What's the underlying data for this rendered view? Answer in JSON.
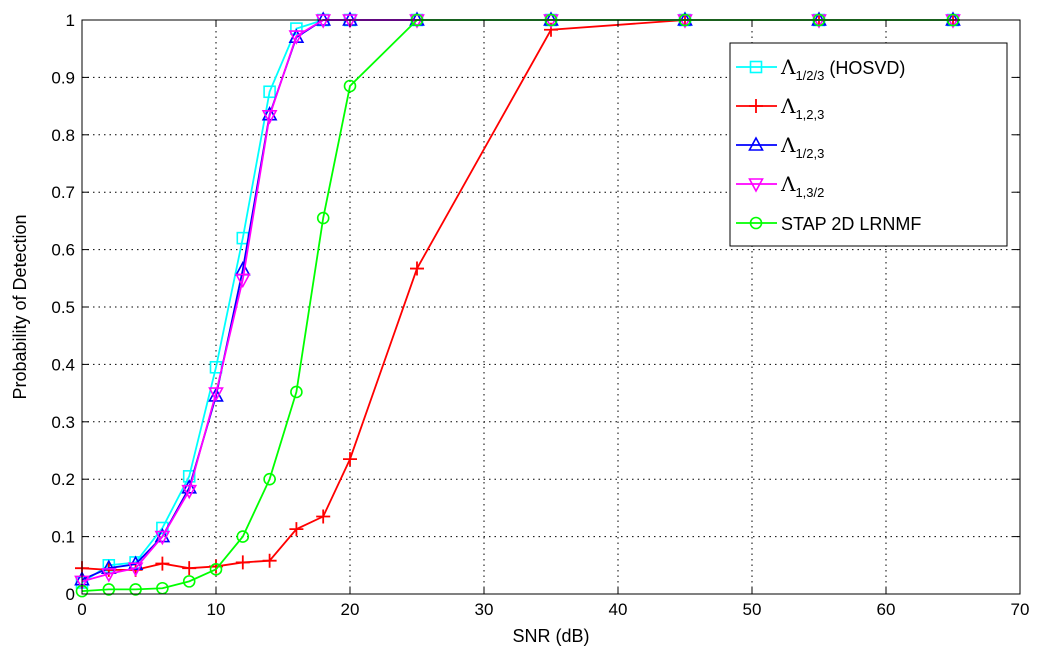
{
  "chart_data": {
    "type": "line",
    "xlabel": "SNR (dB)",
    "ylabel": "Probability of Detection",
    "xlim": [
      0,
      70
    ],
    "ylim": [
      0,
      1
    ],
    "xticks": [
      "0",
      "10",
      "20",
      "30",
      "40",
      "50",
      "60",
      "70"
    ],
    "yticks": [
      "0",
      "0.1",
      "0.2",
      "0.3",
      "0.4",
      "0.5",
      "0.6",
      "0.7",
      "0.8",
      "0.9",
      "1"
    ],
    "grid": true,
    "legend_position": "top-right",
    "x": [
      0,
      2,
      4,
      6,
      8,
      10,
      12,
      14,
      16,
      18,
      20,
      25,
      35,
      45,
      55,
      65
    ],
    "series": [
      {
        "name": "Λ1/2/3 (HOSVD)",
        "symbol": "Λ",
        "subscript": "1/2/3",
        "suffix": " (HOSVD)",
        "color": "#00ffff",
        "marker": "square",
        "values": [
          0.02,
          0.05,
          0.055,
          0.115,
          0.205,
          0.395,
          0.62,
          0.875,
          0.985,
          1,
          1,
          1,
          1,
          1,
          1,
          1
        ]
      },
      {
        "name": "Λ1,2,3",
        "symbol": "Λ",
        "subscript": "1,2,3",
        "suffix": "",
        "color": "#ff0000",
        "marker": "plus",
        "values": [
          0.045,
          0.042,
          0.042,
          0.053,
          0.045,
          0.048,
          0.055,
          0.058,
          0.113,
          0.135,
          0.235,
          0.567,
          0.983,
          1,
          1,
          1
        ]
      },
      {
        "name": "Λ1/2,3",
        "symbol": "Λ",
        "subscript": "1/2,3",
        "suffix": "",
        "color": "#0000ff",
        "marker": "triangle-up",
        "values": [
          0.025,
          0.045,
          0.052,
          0.1,
          0.185,
          0.345,
          0.565,
          0.835,
          0.97,
          1,
          1,
          1,
          1,
          1,
          1,
          1
        ]
      },
      {
        "name": "Λ1,3/2",
        "symbol": "Λ",
        "subscript": "1,3/2",
        "suffix": "",
        "color": "#ff00ff",
        "marker": "triangle-down",
        "values": [
          0.022,
          0.035,
          0.045,
          0.1,
          0.18,
          0.35,
          0.548,
          0.833,
          0.972,
          1,
          1,
          1,
          1,
          1,
          1,
          1
        ]
      },
      {
        "name": "STAP 2D LRNMF",
        "symbol": "",
        "subscript": "",
        "suffix": "STAP 2D LRNMF",
        "color": "#00ff00",
        "marker": "circle",
        "values": [
          0.005,
          0.008,
          0.008,
          0.01,
          0.022,
          0.043,
          0.1,
          0.2,
          0.352,
          0.655,
          0.885,
          1,
          1,
          1,
          1,
          1
        ]
      }
    ]
  }
}
